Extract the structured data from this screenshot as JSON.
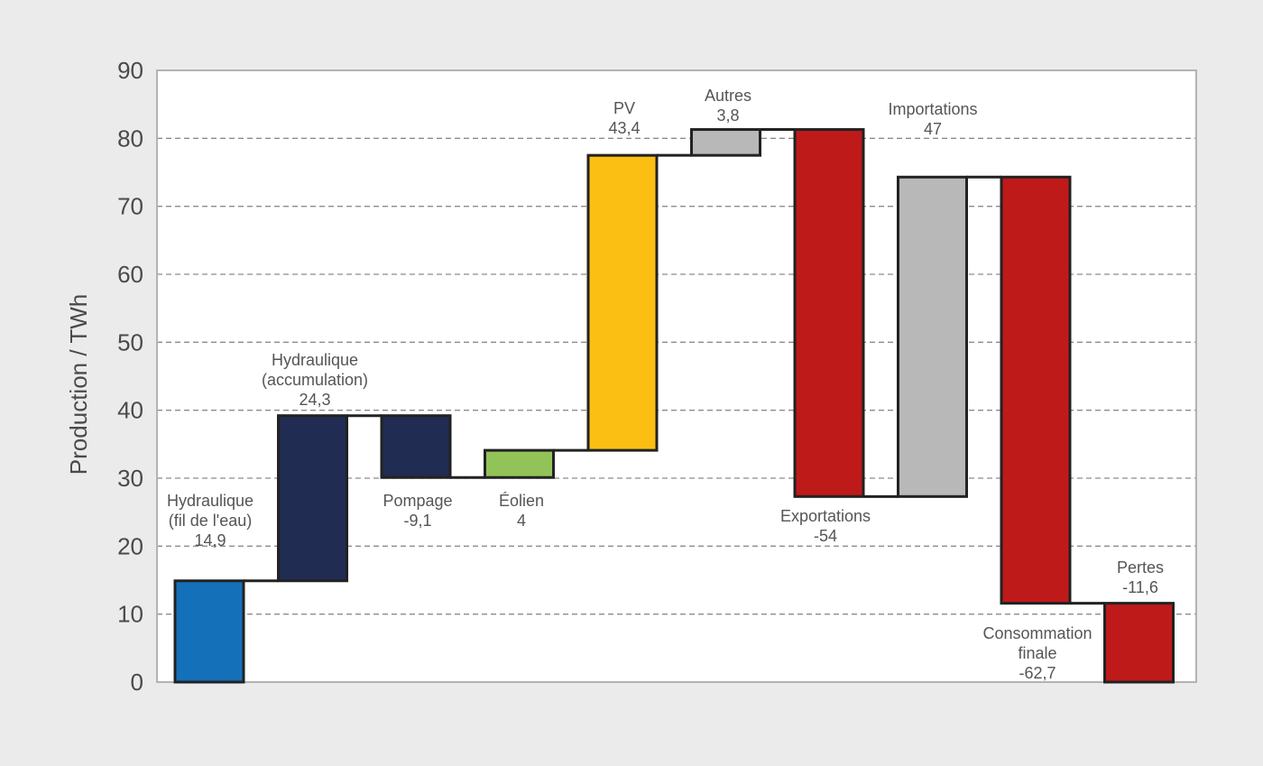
{
  "chart_data": {
    "type": "waterfall",
    "ylabel": "Production / TWh",
    "ylim": [
      0,
      90
    ],
    "yticks": [
      0,
      10,
      20,
      30,
      40,
      50,
      60,
      70,
      80,
      90
    ],
    "grid": true,
    "steps": [
      {
        "label_lines": [
          "Hydraulique",
          "(fil de l'eau)",
          "14,9"
        ],
        "value": 14.9,
        "color": "#1570ba"
      },
      {
        "label_lines": [
          "Hydraulique",
          "(accumulation)",
          "24,3"
        ],
        "value": 24.3,
        "color": "#202c52"
      },
      {
        "label_lines": [
          "Pompage",
          "-9,1"
        ],
        "value": -9.1,
        "color": "#202c52"
      },
      {
        "label_lines": [
          "Éolien",
          "4"
        ],
        "value": 4,
        "color": "#92c358"
      },
      {
        "label_lines": [
          "PV",
          "43,4"
        ],
        "value": 43.4,
        "color": "#fbbf13"
      },
      {
        "label_lines": [
          "Autres",
          "3,8"
        ],
        "value": 3.8,
        "color": "#b8b8b8"
      },
      {
        "label_lines": [
          "Exportations",
          "-54"
        ],
        "value": -54,
        "color": "#bf1a1a"
      },
      {
        "label_lines": [
          "Importations",
          "47"
        ],
        "value": 47,
        "color": "#b8b8b8"
      },
      {
        "label_lines": [
          "Consommation",
          "finale",
          "-62,7"
        ],
        "value": -62.7,
        "color": "#bf1a1a"
      },
      {
        "label_lines": [
          "Pertes",
          "-11,6"
        ],
        "value": -11.6,
        "color": "#bf1a1a"
      }
    ]
  }
}
